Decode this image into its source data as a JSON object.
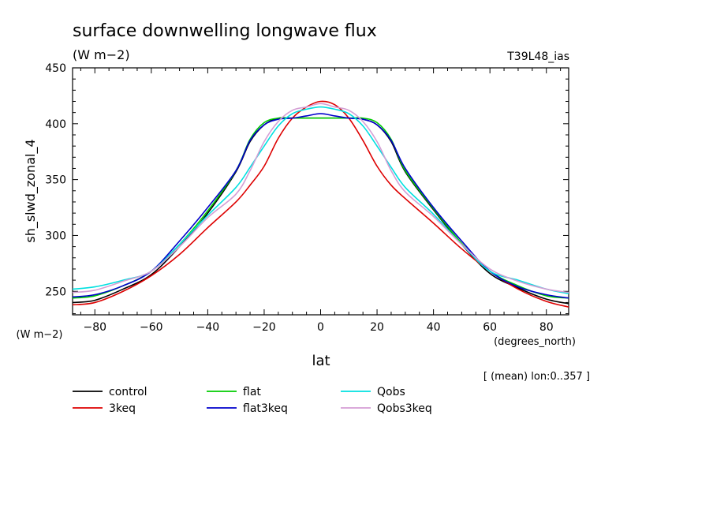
{
  "chart_data": {
    "type": "line",
    "title": "surface downwelling longwave flux",
    "units_label": "(W m−2)",
    "experiment_label": "T39L48_ias",
    "ylabel": "sh_slwd_zonal_4",
    "y_units": "(W m−2)",
    "xlabel": "lat",
    "x_units": "(degrees_north)",
    "note": "[ (mean) lon:0..357 ]",
    "xlim": [
      -87.9,
      87.9
    ],
    "ylim": [
      229,
      450
    ],
    "x_ticks": [
      -80,
      -60,
      -40,
      -20,
      0,
      20,
      40,
      60,
      80
    ],
    "x_tick_labels": [
      "−80",
      "−60",
      "−40",
      "−20",
      "0",
      "20",
      "40",
      "60",
      "80"
    ],
    "y_ticks": [
      250,
      300,
      350,
      400,
      450
    ],
    "y_tick_labels": [
      "250",
      "300",
      "350",
      "400",
      "450"
    ],
    "legend_position": "bottom",
    "x": [
      -87.9,
      -80,
      -70,
      -60,
      -50,
      -40,
      -30,
      -25,
      -20,
      -15,
      -10,
      -5,
      0,
      5,
      10,
      15,
      20,
      25,
      30,
      40,
      50,
      60,
      70,
      80,
      87.9
    ],
    "series": [
      {
        "name": "control",
        "color": "#000000",
        "values": [
          240,
          242,
          252,
          265,
          290,
          320,
          357,
          384,
          399,
          405,
          405,
          405,
          405,
          405,
          405,
          404,
          399,
          384,
          357,
          323,
          292,
          266,
          253,
          243,
          239
        ]
      },
      {
        "name": "3keq",
        "color": "#dd0000",
        "values": [
          238,
          240,
          250,
          264,
          283,
          307,
          330,
          345,
          362,
          387,
          405,
          415,
          420,
          417,
          405,
          385,
          362,
          345,
          333,
          311,
          288,
          268,
          252,
          241,
          236
        ]
      },
      {
        "name": "flat",
        "color": "#00cc00",
        "values": [
          244,
          246,
          255,
          268,
          292,
          322,
          358,
          386,
          401,
          405,
          405,
          405,
          405,
          405,
          405,
          405,
          401,
          386,
          358,
          324,
          293,
          268,
          255,
          246,
          244
        ]
      },
      {
        "name": "flat3keq",
        "color": "#0000cc",
        "values": [
          245,
          247,
          255,
          268,
          295,
          325,
          358,
          385,
          399,
          404,
          405,
          407,
          409,
          407,
          405,
          404,
          399,
          385,
          360,
          325,
          295,
          268,
          254,
          247,
          244
        ]
      },
      {
        "name": "Qobs",
        "color": "#00e0e0",
        "values": [
          252,
          254,
          260,
          268,
          292,
          318,
          343,
          361,
          380,
          398,
          409,
          413,
          415,
          413,
          409,
          398,
          380,
          361,
          343,
          319,
          292,
          268,
          260,
          252,
          248
        ]
      },
      {
        "name": "Qobs3keq",
        "color": "#d49ed4",
        "values": [
          249,
          251,
          259,
          268,
          290,
          316,
          337,
          358,
          384,
          402,
          412,
          415,
          418,
          415,
          412,
          402,
          384,
          358,
          339,
          317,
          292,
          270,
          259,
          252,
          249
        ]
      }
    ]
  }
}
